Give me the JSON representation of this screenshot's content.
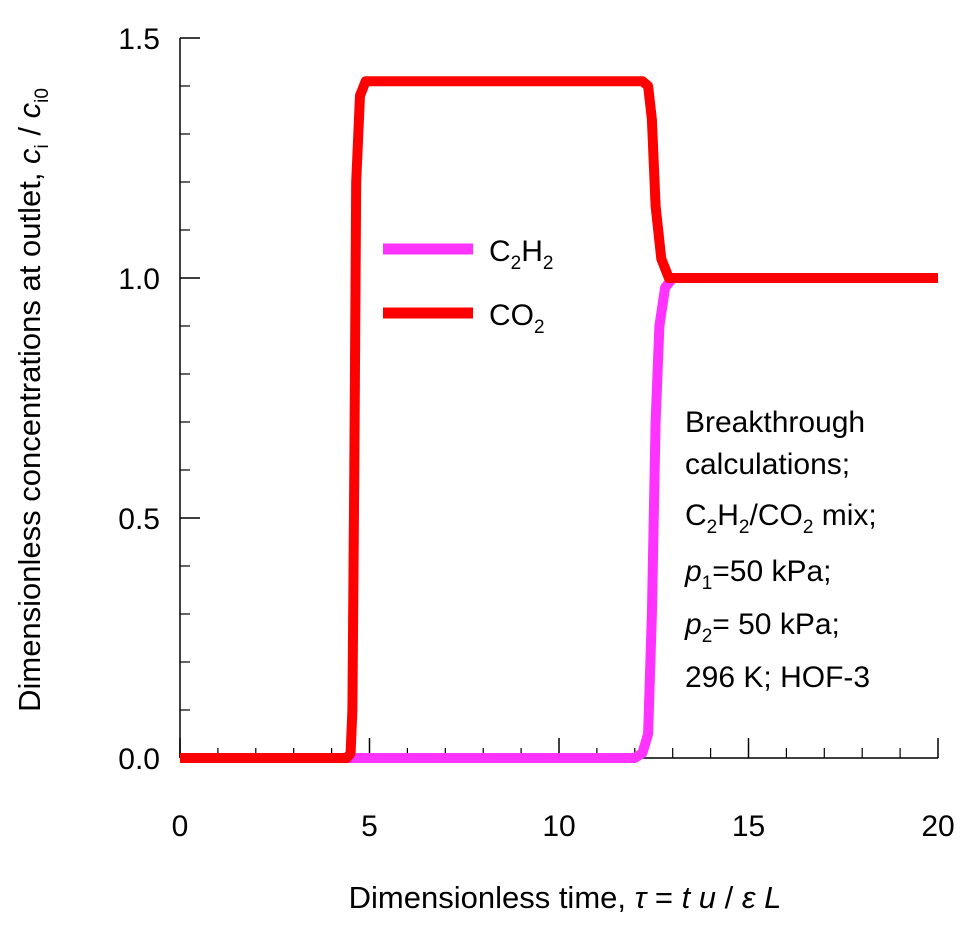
{
  "chart_data": {
    "type": "line",
    "xlabel": {
      "prefix": "Dimensionless time, ",
      "symbol_tau": "τ",
      "eq": " = ",
      "t": "t",
      "u": " u",
      "slash": " / ",
      "eps": "ε",
      "L": " L"
    },
    "ylabel": {
      "prefix": "Dimensionless concentrations at outlet, ",
      "c": "c",
      "i": "i",
      "slash": " / ",
      "c2": "c",
      "i0": "i0"
    },
    "xlim": [
      0,
      20
    ],
    "ylim": [
      0,
      1.5
    ],
    "x_ticks": [
      "0",
      "5",
      "10",
      "15",
      "20"
    ],
    "y_ticks": [
      "0.0",
      "0.5",
      "1.0",
      "1.5"
    ],
    "x_tick_values": [
      0,
      5,
      10,
      15,
      20
    ],
    "y_tick_values": [
      0,
      0.5,
      1.0,
      1.5
    ],
    "x_minor_step": 1,
    "y_minor_step": 0.1,
    "grid": false,
    "legend_position": "upper-middle",
    "series": [
      {
        "name": "C2H2",
        "label_main": "C",
        "label_sub1": "2",
        "label_mid": "H",
        "label_sub2": "2",
        "color": "#ff33ff",
        "points": [
          [
            0,
            0
          ],
          [
            12.0,
            0
          ],
          [
            12.2,
            0.01
          ],
          [
            12.35,
            0.05
          ],
          [
            12.45,
            0.3
          ],
          [
            12.55,
            0.7
          ],
          [
            12.65,
            0.9
          ],
          [
            12.8,
            0.98
          ],
          [
            13.0,
            1.0
          ],
          [
            20,
            1.0
          ]
        ]
      },
      {
        "name": "CO2",
        "label_main": "CO",
        "label_sub1": "2",
        "color": "#ff0000",
        "points": [
          [
            0,
            0
          ],
          [
            4.4,
            0
          ],
          [
            4.5,
            0.01
          ],
          [
            4.55,
            0.1
          ],
          [
            4.6,
            0.6
          ],
          [
            4.65,
            1.2
          ],
          [
            4.75,
            1.38
          ],
          [
            4.9,
            1.41
          ],
          [
            12.2,
            1.41
          ],
          [
            12.35,
            1.4
          ],
          [
            12.45,
            1.33
          ],
          [
            12.55,
            1.15
          ],
          [
            12.7,
            1.04
          ],
          [
            12.9,
            1.0
          ],
          [
            20,
            1.0
          ]
        ]
      }
    ],
    "annotation": {
      "line1": "Breakthrough",
      "line2": "calculations;",
      "line3_a": "C",
      "line3_s1": "2",
      "line3_b": "H",
      "line3_s2": "2",
      "line3_c": "/CO",
      "line3_s3": "2",
      "line3_d": " mix;",
      "line4_p": "p",
      "line4_s": "1",
      "line4_rest": "=50 kPa;",
      "line5_p": "p",
      "line5_s": "2",
      "line5_rest": "= 50 kPa;",
      "line6": "296 K; HOF-3"
    }
  }
}
